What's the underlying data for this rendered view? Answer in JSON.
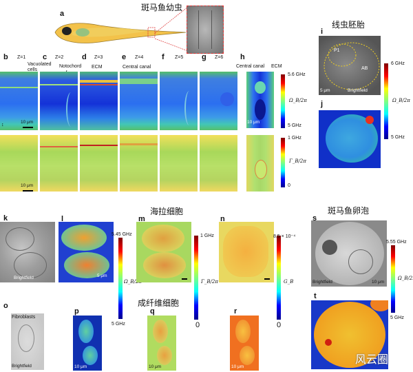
{
  "titles": {
    "zebrafish_larva": "斑马鱼幼虫",
    "nematode_embryo": "线虫胚胎",
    "hela_cells": "海拉细胞",
    "fibroblasts": "成纤维细胞",
    "zebrafish_egg": "斑马鱼卵泡"
  },
  "panel_letters": {
    "a": "a",
    "h_top": "h",
    "b": "b",
    "c": "c",
    "d": "d",
    "e": "e",
    "f": "f",
    "g": "g",
    "h": "h",
    "i": "i",
    "j": "j",
    "k": "k",
    "l": "l",
    "m": "m",
    "n": "n",
    "o": "o",
    "p": "p",
    "q": "q",
    "r": "r",
    "s": "s",
    "t": "t"
  },
  "z_labels": [
    "Z=1",
    "Z=2",
    "Z=3",
    "Z=4",
    "Z=5",
    "Z=6"
  ],
  "annotations": {
    "vacuolated_cells": "Vacuolated cells",
    "notochord": "Notochord",
    "ecm": "ECM",
    "central_canal": "Central canal",
    "central_canal_h": "Central canal",
    "ecm_h": "ECM",
    "p1": "P1",
    "ab": "AB",
    "brightfield": "Brightfield",
    "fibroblasts": "Fibroblasts"
  },
  "scale_bars": {
    "ten_um": "10 μm",
    "five_um": "5 μm"
  },
  "colorbars": {
    "h_shift": {
      "max": "5.6 GHz",
      "min": "5 GHz",
      "symbol": "Ω_B/2π"
    },
    "h_width": {
      "max": "1 GHz",
      "min": "0",
      "symbol": "Γ_B/2π"
    },
    "i_shift": {
      "max": "6 GHz",
      "min": "5 GHz",
      "symbol": "Ω_B/2π"
    },
    "l_shift": {
      "max": "5.45 GHz",
      "min": "5 GHz",
      "symbol": "Ω_B/2π"
    },
    "m_width": {
      "max": "1 GHz",
      "min": "0",
      "symbol": "Γ_B/2π"
    },
    "n_gain": {
      "max": "8.5 × 10⁻⁴",
      "min": "0",
      "symbol": "G_B"
    },
    "s_shift": {
      "max": "5.55 GHz",
      "min": "5 GHz",
      "symbol": "Ω_B/2π"
    }
  },
  "watermark": "风云圈",
  "colors": {
    "jet_gradient": [
      "#00008f",
      "#0000ff",
      "#00ffff",
      "#80ff80",
      "#ffff00",
      "#ff0000",
      "#800000"
    ]
  }
}
